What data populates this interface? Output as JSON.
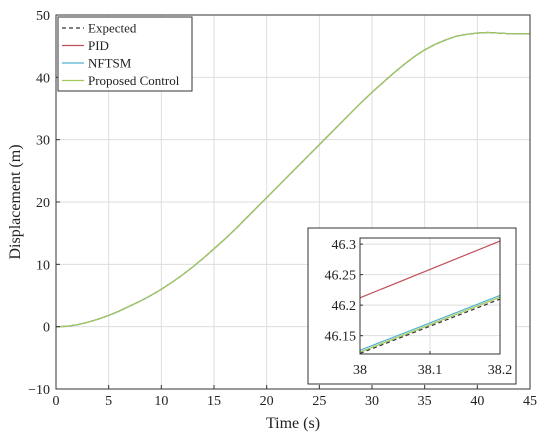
{
  "chart_data": {
    "type": "line",
    "xlabel": "Time (s)",
    "ylabel": "Displacement (m)",
    "xlim": [
      0,
      45
    ],
    "ylim": [
      -10,
      50
    ],
    "xticks": [
      0,
      5,
      10,
      15,
      20,
      25,
      30,
      35,
      40,
      45
    ],
    "yticks": [
      -10,
      0,
      10,
      20,
      30,
      40,
      50
    ],
    "grid": true,
    "legend_position": "top-left",
    "series": [
      {
        "name": "Expected",
        "style": "dashed",
        "color": "#333333",
        "points": [
          [
            0,
            0
          ],
          [
            1,
            0.05
          ],
          [
            2,
            0.3
          ],
          [
            3,
            0.7
          ],
          [
            4,
            1.2
          ],
          [
            5,
            1.8
          ],
          [
            6,
            2.5
          ],
          [
            7,
            3.3
          ],
          [
            8,
            4.1
          ],
          [
            9,
            5.0
          ],
          [
            10,
            6.0
          ],
          [
            11,
            7.1
          ],
          [
            12,
            8.3
          ],
          [
            13,
            9.6
          ],
          [
            14,
            11.0
          ],
          [
            15,
            12.5
          ],
          [
            16,
            14.0
          ],
          [
            17,
            15.6
          ],
          [
            18,
            17.3
          ],
          [
            19,
            19.0
          ],
          [
            20,
            20.7
          ],
          [
            21,
            22.4
          ],
          [
            22,
            24.1
          ],
          [
            23,
            25.8
          ],
          [
            24,
            27.5
          ],
          [
            25,
            29.2
          ],
          [
            26,
            30.9
          ],
          [
            27,
            32.6
          ],
          [
            28,
            34.3
          ],
          [
            29,
            36.0
          ],
          [
            30,
            37.6
          ],
          [
            31,
            39.1
          ],
          [
            32,
            40.6
          ],
          [
            33,
            42.0
          ],
          [
            34,
            43.3
          ],
          [
            35,
            44.4
          ],
          [
            36,
            45.3
          ],
          [
            37,
            46.0
          ],
          [
            38,
            46.6
          ],
          [
            39,
            46.9
          ],
          [
            40,
            47.1
          ],
          [
            41,
            47.2
          ],
          [
            42,
            47.1
          ],
          [
            43,
            47.0
          ],
          [
            44,
            47.0
          ],
          [
            45,
            47.0
          ]
        ]
      },
      {
        "name": "PID",
        "style": "solid",
        "color": "#c0505a",
        "points": [
          [
            0,
            0
          ],
          [
            1,
            0.05
          ],
          [
            2,
            0.3
          ],
          [
            3,
            0.7
          ],
          [
            4,
            1.2
          ],
          [
            5,
            1.8
          ],
          [
            6,
            2.5
          ],
          [
            7,
            3.3
          ],
          [
            8,
            4.1
          ],
          [
            9,
            5.0
          ],
          [
            10,
            6.0
          ],
          [
            11,
            7.1
          ],
          [
            12,
            8.3
          ],
          [
            13,
            9.6
          ],
          [
            14,
            11.0
          ],
          [
            15,
            12.5
          ],
          [
            16,
            14.0
          ],
          [
            17,
            15.6
          ],
          [
            18,
            17.3
          ],
          [
            19,
            19.0
          ],
          [
            20,
            20.7
          ],
          [
            21,
            22.4
          ],
          [
            22,
            24.1
          ],
          [
            23,
            25.8
          ],
          [
            24,
            27.5
          ],
          [
            25,
            29.2
          ],
          [
            26,
            30.9
          ],
          [
            27,
            32.6
          ],
          [
            28,
            34.3
          ],
          [
            29,
            36.0
          ],
          [
            30,
            37.6
          ],
          [
            31,
            39.1
          ],
          [
            32,
            40.6
          ],
          [
            33,
            42.0
          ],
          [
            34,
            43.3
          ],
          [
            35,
            44.4
          ],
          [
            36,
            45.3
          ],
          [
            37,
            46.0
          ],
          [
            38,
            46.6
          ],
          [
            39,
            46.9
          ],
          [
            40,
            47.1
          ],
          [
            41,
            47.2
          ],
          [
            42,
            47.1
          ],
          [
            43,
            47.0
          ],
          [
            44,
            47.0
          ],
          [
            45,
            47.0
          ]
        ]
      },
      {
        "name": "NFTSM",
        "style": "solid",
        "color": "#4fb3c9",
        "points": [
          [
            0,
            0
          ],
          [
            1,
            0.05
          ],
          [
            2,
            0.3
          ],
          [
            3,
            0.7
          ],
          [
            4,
            1.2
          ],
          [
            5,
            1.8
          ],
          [
            6,
            2.5
          ],
          [
            7,
            3.3
          ],
          [
            8,
            4.1
          ],
          [
            9,
            5.0
          ],
          [
            10,
            6.0
          ],
          [
            11,
            7.1
          ],
          [
            12,
            8.3
          ],
          [
            13,
            9.6
          ],
          [
            14,
            11.0
          ],
          [
            15,
            12.5
          ],
          [
            16,
            14.0
          ],
          [
            17,
            15.6
          ],
          [
            18,
            17.3
          ],
          [
            19,
            19.0
          ],
          [
            20,
            20.7
          ],
          [
            21,
            22.4
          ],
          [
            22,
            24.1
          ],
          [
            23,
            25.8
          ],
          [
            24,
            27.5
          ],
          [
            25,
            29.2
          ],
          [
            26,
            30.9
          ],
          [
            27,
            32.6
          ],
          [
            28,
            34.3
          ],
          [
            29,
            36.0
          ],
          [
            30,
            37.6
          ],
          [
            31,
            39.1
          ],
          [
            32,
            40.6
          ],
          [
            33,
            42.0
          ],
          [
            34,
            43.3
          ],
          [
            35,
            44.4
          ],
          [
            36,
            45.3
          ],
          [
            37,
            46.0
          ],
          [
            38,
            46.6
          ],
          [
            39,
            46.9
          ],
          [
            40,
            47.1
          ],
          [
            41,
            47.2
          ],
          [
            42,
            47.1
          ],
          [
            43,
            47.0
          ],
          [
            44,
            47.0
          ],
          [
            45,
            47.0
          ]
        ]
      },
      {
        "name": "Proposed Control",
        "style": "solid",
        "color": "#a3c95a",
        "points": [
          [
            0,
            0
          ],
          [
            1,
            0.05
          ],
          [
            2,
            0.3
          ],
          [
            3,
            0.7
          ],
          [
            4,
            1.2
          ],
          [
            5,
            1.8
          ],
          [
            6,
            2.5
          ],
          [
            7,
            3.3
          ],
          [
            8,
            4.1
          ],
          [
            9,
            5.0
          ],
          [
            10,
            6.0
          ],
          [
            11,
            7.1
          ],
          [
            12,
            8.3
          ],
          [
            13,
            9.6
          ],
          [
            14,
            11.0
          ],
          [
            15,
            12.5
          ],
          [
            16,
            14.0
          ],
          [
            17,
            15.6
          ],
          [
            18,
            17.3
          ],
          [
            19,
            19.0
          ],
          [
            20,
            20.7
          ],
          [
            21,
            22.4
          ],
          [
            22,
            24.1
          ],
          [
            23,
            25.8
          ],
          [
            24,
            27.5
          ],
          [
            25,
            29.2
          ],
          [
            26,
            30.9
          ],
          [
            27,
            32.6
          ],
          [
            28,
            34.3
          ],
          [
            29,
            36.0
          ],
          [
            30,
            37.6
          ],
          [
            31,
            39.1
          ],
          [
            32,
            40.6
          ],
          [
            33,
            42.0
          ],
          [
            34,
            43.3
          ],
          [
            35,
            44.4
          ],
          [
            36,
            45.3
          ],
          [
            37,
            46.0
          ],
          [
            38,
            46.6
          ],
          [
            39,
            46.9
          ],
          [
            40,
            47.1
          ],
          [
            41,
            47.2
          ],
          [
            42,
            47.1
          ],
          [
            43,
            47.0
          ],
          [
            44,
            47.0
          ],
          [
            45,
            47.0
          ]
        ]
      }
    ],
    "inset": {
      "xlim": [
        38,
        38.2
      ],
      "ylim": [
        46.12,
        46.31
      ],
      "xticks": [
        38,
        38.1,
        38.2
      ],
      "xtick_labels": [
        "38",
        "38.1",
        "38.2"
      ],
      "yticks": [
        46.15,
        46.2,
        46.25,
        46.3
      ],
      "ytick_labels": [
        "46.15",
        "46.2",
        "46.25",
        "46.3"
      ],
      "grid": true,
      "series": [
        {
          "name": "Expected",
          "style": "dashed",
          "color": "#333333",
          "points": [
            [
              38,
              46.121
            ],
            [
              38.2,
              46.21
            ]
          ]
        },
        {
          "name": "NFTSM",
          "style": "solid",
          "color": "#4fb3c9",
          "points": [
            [
              38,
              46.126
            ],
            [
              38.2,
              46.216
            ]
          ]
        },
        {
          "name": "Proposed Control",
          "style": "solid",
          "color": "#a3c95a",
          "points": [
            [
              38,
              46.123
            ],
            [
              38.2,
              46.213
            ]
          ]
        },
        {
          "name": "PID",
          "style": "solid",
          "color": "#c0505a",
          "points": [
            [
              38,
              46.212
            ],
            [
              38.2,
              46.305
            ]
          ]
        }
      ]
    }
  }
}
